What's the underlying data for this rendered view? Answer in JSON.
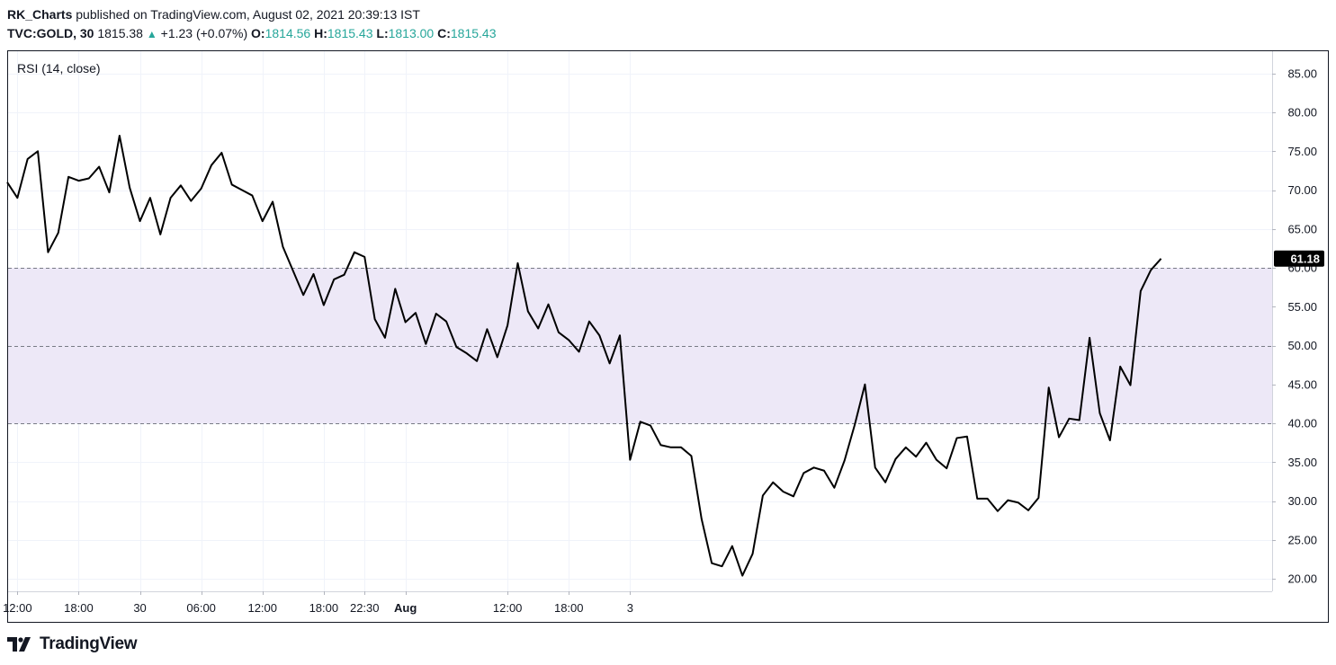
{
  "header": {
    "author": "RK_Charts",
    "published_text": "published on TradingView.com, August 02, 2021 20:39:13 IST",
    "symbol": "TVC:GOLD, 30",
    "price": "1815.38",
    "change": "+1.23 (+0.07%)",
    "open_label": "O:",
    "open": "1814.56",
    "high_label": "H:",
    "high": "1815.43",
    "low_label": "L:",
    "low": "1813.00",
    "close_label": "C:",
    "close": "1815.43"
  },
  "indicator_label": "RSI (14, close)",
  "last_value_label": "61.18",
  "footer": {
    "brand": "TradingView"
  },
  "colors": {
    "line": "#000000",
    "band": "#ede8f7",
    "up": "#26a69a",
    "grid": "#f0f3fa",
    "axis_text": "#131722"
  },
  "chart_data": {
    "type": "line",
    "title": "RSI (14, close)",
    "ylim": [
      18,
      87
    ],
    "y_ticks": [
      20,
      25,
      30,
      35,
      40,
      45,
      50,
      55,
      60,
      65,
      70,
      75,
      80,
      85
    ],
    "y_tick_labels": [
      "20.00",
      "25.00",
      "30.00",
      "35.00",
      "40.00",
      "45.00",
      "50.00",
      "55.00",
      "60.00",
      "65.00",
      "70.00",
      "75.00",
      "80.00",
      "85.00"
    ],
    "x_tick_labels": [
      "12:00",
      "18:00",
      "30",
      "06:00",
      "12:00",
      "18:00",
      "22:30",
      "Aug",
      "12:00",
      "18:00",
      "3"
    ],
    "x_tick_index": [
      1,
      7,
      13,
      19,
      25,
      31,
      35,
      39,
      49,
      55,
      61
    ],
    "bold_x_labels": [
      "Aug"
    ],
    "levels": [
      40,
      50,
      60
    ],
    "band": [
      40,
      60
    ],
    "last_value": 61.18,
    "grid": true,
    "series": [
      {
        "values": [
          71,
          69,
          74,
          75,
          62,
          64.5,
          71.7,
          71.2,
          71.5,
          73,
          69.7,
          77,
          70.3,
          66,
          69,
          64.3,
          69,
          70.6,
          68.6,
          70.2,
          73.2,
          74.8,
          70.7,
          70,
          69.3,
          66,
          68.5,
          62.7,
          59.6,
          56.5,
          59.2,
          55.2,
          58.5,
          59.1,
          62,
          61.4,
          53.4,
          51,
          57.3,
          53,
          54.2,
          50.2,
          54.1,
          53.1,
          49.8,
          49,
          48,
          52.1,
          48.5,
          52.6,
          60.6,
          54.4,
          52.2,
          55.3,
          51.7,
          50.7,
          49.2,
          53.1,
          51.3,
          47.7,
          51.3,
          35.3,
          40.2,
          39.7,
          37.2,
          36.9,
          36.9,
          35.8,
          27.7,
          22,
          21.6,
          24.2,
          20.4,
          23.2,
          30.7,
          32.4,
          31.2,
          30.6,
          33.6,
          34.3,
          33.9,
          31.7,
          35.2,
          39.8,
          45,
          34.3,
          32.4,
          35.4,
          36.9,
          35.7,
          37.5,
          35.3,
          34.2,
          38.1,
          38.3,
          30.3,
          30.3,
          28.7,
          30.1,
          29.8,
          28.8,
          30.4,
          44.6,
          38.2,
          40.6,
          40.4,
          51,
          41.3,
          37.8,
          47.3,
          44.9,
          57,
          59.7,
          61.18
        ]
      }
    ]
  }
}
